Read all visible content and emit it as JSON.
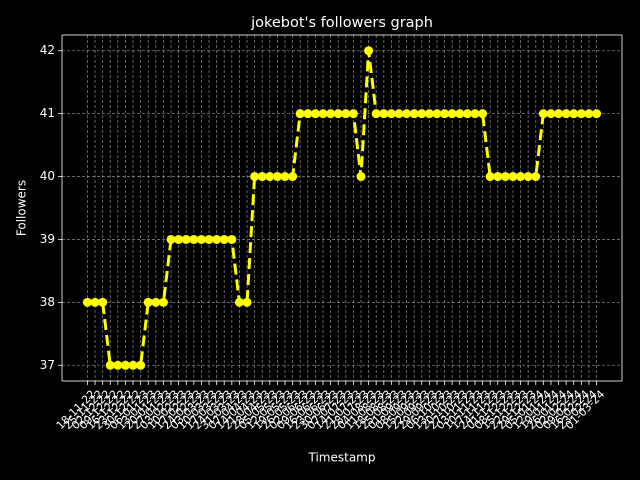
{
  "chart_data": {
    "type": "line",
    "title": "jokebot's followers graph",
    "xlabel": "Timestamp",
    "ylabel": "Followers",
    "color": "#ffff00",
    "grid": true,
    "categories": [
      "18-11-22",
      "25-11-22",
      "02-12-22",
      "09-12-22",
      "16-12-22",
      "23-12-22",
      "30-12-22",
      "06-01-23",
      "13-01-23",
      "20-01-23",
      "27-01-23",
      "03-02-23",
      "10-02-23",
      "17-02-23",
      "24-02-23",
      "03-03-23",
      "10-03-23",
      "17-03-23",
      "24-03-23",
      "31-03-23",
      "07-04-23",
      "14-04-23",
      "21-04-23",
      "28-04-23",
      "05-05-23",
      "12-05-23",
      "19-05-23",
      "26-05-23",
      "02-06-23",
      "09-06-23",
      "16-06-23",
      "23-06-23",
      "30-06-23",
      "07-07-23",
      "14-07-23",
      "21-07-23",
      "28-07-23",
      "04-08-23",
      "11-08-23",
      "18-08-23",
      "25-08-23",
      "01-09-23",
      "08-09-23",
      "15-09-23",
      "22-09-23",
      "29-09-23",
      "06-10-23",
      "13-10-23",
      "20-10-23",
      "27-10-23",
      "03-11-23",
      "10-11-23",
      "17-11-23",
      "24-11-23",
      "01-12-23",
      "08-12-23",
      "15-12-23",
      "22-12-23",
      "29-12-23",
      "05-01-24",
      "12-01-24",
      "19-01-24",
      "26-01-24",
      "02-02-24",
      "09-02-24",
      "16-02-24",
      "23-02-24",
      "01-03-24"
    ],
    "values": [
      38,
      38,
      38,
      37,
      37,
      37,
      37,
      37,
      38,
      38,
      38,
      39,
      39,
      39,
      39,
      39,
      39,
      39,
      39,
      39,
      38,
      38,
      40,
      40,
      40,
      40,
      40,
      40,
      41,
      41,
      41,
      41,
      41,
      41,
      41,
      41,
      40,
      42,
      41,
      41,
      41,
      41,
      41,
      41,
      41,
      41,
      41,
      41,
      41,
      41,
      41,
      41,
      41,
      40,
      40,
      40,
      40,
      40,
      40,
      40,
      41,
      41,
      41,
      41,
      41,
      41,
      41,
      41
    ],
    "ylim": [
      36.75,
      42.25
    ],
    "yticks": [
      37,
      38,
      39,
      40,
      41,
      42
    ]
  }
}
